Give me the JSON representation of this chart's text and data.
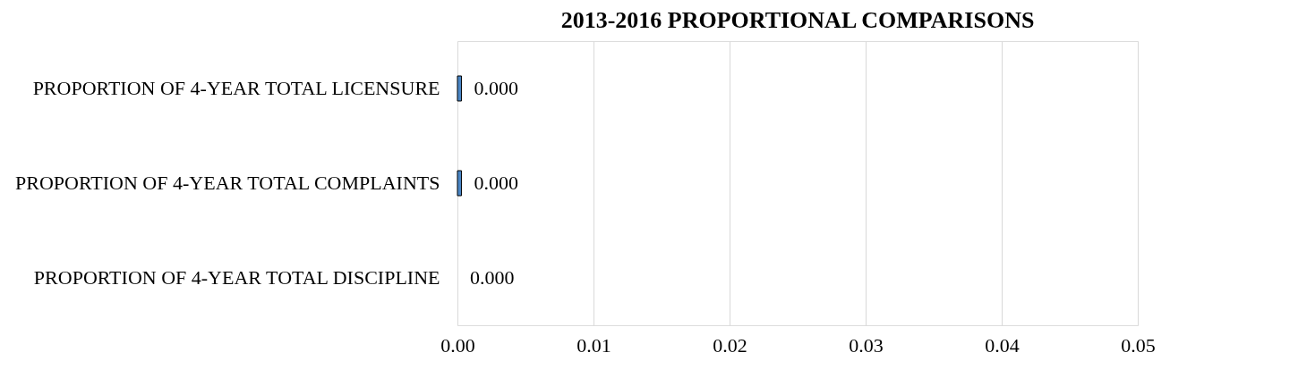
{
  "chart_data": {
    "type": "bar",
    "orientation": "horizontal",
    "title": "2013-2016 PROPORTIONAL COMPARISONS",
    "categories": [
      "PROPORTION OF 4-YEAR TOTAL LICENSURE",
      "PROPORTION OF 4-YEAR TOTAL COMPLAINTS",
      "PROPORTION OF 4-YEAR TOTAL DISCIPLINE"
    ],
    "values": [
      0.0003,
      0.0003,
      0
    ],
    "value_labels": [
      "0.000",
      "0.000",
      "0.000"
    ],
    "color": "#4a86c5",
    "xlim": [
      0,
      0.05
    ],
    "xticks": [
      {
        "value": 0,
        "label": "0.00"
      },
      0.01,
      0.02,
      0.03,
      0.04,
      0.05
    ],
    "grid": "x"
  }
}
